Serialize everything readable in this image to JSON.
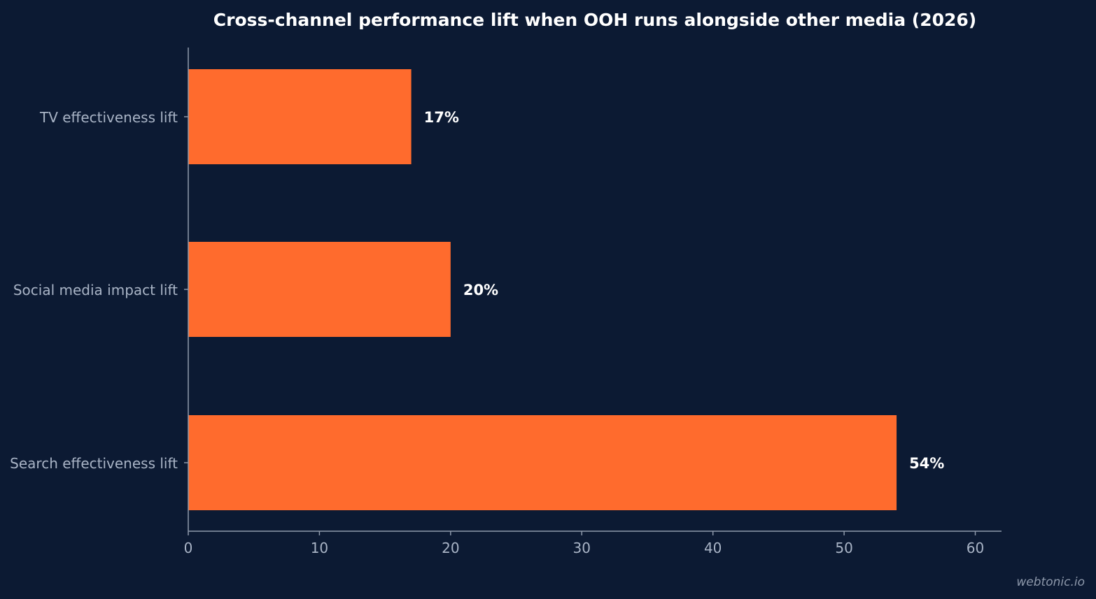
{
  "chart_data": {
    "type": "bar",
    "orientation": "horizontal",
    "title": "Cross-channel performance lift when OOH runs alongside other media (2026)",
    "categories": [
      "TV effectiveness lift",
      "Social media impact lift",
      "Search effectiveness lift"
    ],
    "values": [
      17,
      20,
      54
    ],
    "value_labels": [
      "17%",
      "20%",
      "54%"
    ],
    "xlim": [
      0,
      62
    ],
    "xticks": [
      0,
      10,
      20,
      30,
      40,
      50,
      60
    ],
    "xlabel": "",
    "ylabel": "",
    "grid": false,
    "legend": "none",
    "colors": {
      "background": "#0c1a33",
      "bar": "#ff6b2d",
      "axis": "#8e99ab",
      "title": "#ffffff",
      "label": "#a9b4c6",
      "value_label": "#ffffff"
    }
  },
  "watermark": "webtonic.io"
}
